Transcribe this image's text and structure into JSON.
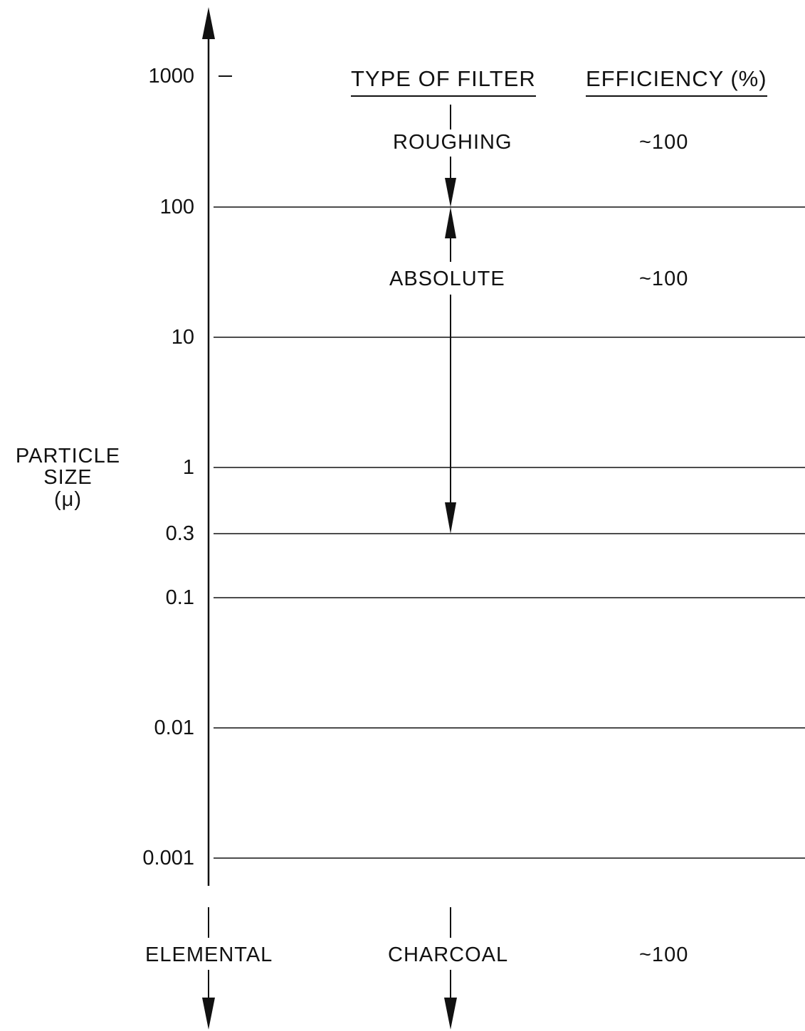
{
  "axis": {
    "line1": "PARTICLE",
    "line2": "SIZE",
    "line3": "(μ)",
    "ticks": [
      "1000",
      "100",
      "10",
      "1",
      "0.3",
      "0.1",
      "0.01",
      "0.001"
    ]
  },
  "headers": {
    "filter": "TYPE OF FILTER",
    "efficiency": "EFFICIENCY (%)"
  },
  "rows": [
    {
      "filter": "ROUGHING",
      "efficiency": "~100"
    },
    {
      "filter": "ABSOLUTE",
      "efficiency": "~100"
    },
    {
      "filter": "CHARCOAL",
      "efficiency": "~100",
      "particle": "ELEMENTAL"
    }
  ],
  "colors": {
    "ink": "#111111"
  }
}
